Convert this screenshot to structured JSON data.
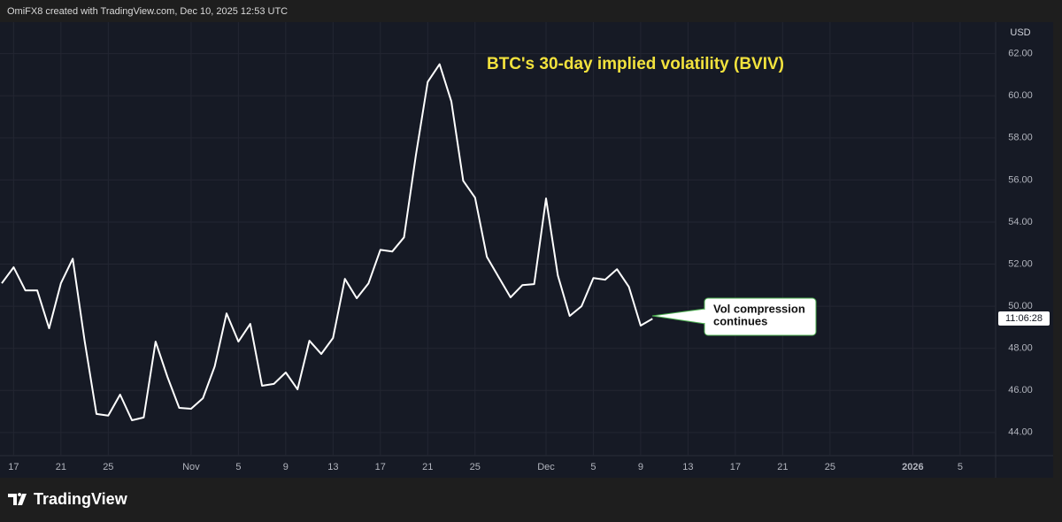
{
  "header": "OmiFX8 created with TradingView.com, Dec 10, 2025 12:53 UTC",
  "footer": "TradingView",
  "chart_data": {
    "type": "line",
    "title": "BTC's 30-day implied volatility (BVIV)",
    "currency": "USD",
    "countdown": "11:06:28",
    "annotation": [
      "Vol compression",
      "continues"
    ],
    "x": [
      "2025-10-16",
      "2025-10-17",
      "2025-10-18",
      "2025-10-19",
      "2025-10-20",
      "2025-10-21",
      "2025-10-22",
      "2025-10-23",
      "2025-10-24",
      "2025-10-25",
      "2025-10-26",
      "2025-10-27",
      "2025-10-28",
      "2025-10-29",
      "2025-10-30",
      "2025-10-31",
      "2025-11-01",
      "2025-11-02",
      "2025-11-03",
      "2025-11-04",
      "2025-11-05",
      "2025-11-06",
      "2025-11-07",
      "2025-11-08",
      "2025-11-09",
      "2025-11-10",
      "2025-11-11",
      "2025-11-12",
      "2025-11-13",
      "2025-11-14",
      "2025-11-15",
      "2025-11-16",
      "2025-11-17",
      "2025-11-18",
      "2025-11-19",
      "2025-11-20",
      "2025-11-21",
      "2025-11-22",
      "2025-11-23",
      "2025-11-24",
      "2025-11-25",
      "2025-11-26",
      "2025-11-27",
      "2025-11-28",
      "2025-11-29",
      "2025-11-30",
      "2025-12-01",
      "2025-12-02",
      "2025-12-03",
      "2025-12-04",
      "2025-12-05",
      "2025-12-06",
      "2025-12-07",
      "2025-12-08",
      "2025-12-09",
      "2025-12-10"
    ],
    "series": [
      {
        "color": "#ffffff",
        "values": [
          51.09,
          51.85,
          50.75,
          50.75,
          48.95,
          51.09,
          52.26,
          48.36,
          44.88,
          44.8,
          45.8,
          44.58,
          44.71,
          48.32,
          46.64,
          45.17,
          45.13,
          45.63,
          47.14,
          49.66,
          48.32,
          49.16,
          46.22,
          46.31,
          46.85,
          46.05,
          48.36,
          47.73,
          48.49,
          51.3,
          50.38,
          51.09,
          52.68,
          52.6,
          53.27,
          57.17,
          60.66,
          61.5,
          59.73,
          55.96,
          55.16,
          52.35,
          51.38,
          50.42,
          51.0,
          51.05,
          55.12,
          51.47,
          49.54,
          50.0,
          51.34,
          51.26,
          51.76,
          50.92,
          49.08,
          49.41
        ]
      }
    ],
    "xlim": [
      "2025-10-16",
      "2026-01-08"
    ],
    "xticks": [
      {
        "value": "2025-10-17",
        "label": "17"
      },
      {
        "value": "2025-10-21",
        "label": "21"
      },
      {
        "value": "2025-10-25",
        "label": "25"
      },
      {
        "value": "2025-11-01",
        "label": "Nov"
      },
      {
        "value": "2025-11-05",
        "label": "5"
      },
      {
        "value": "2025-11-09",
        "label": "9"
      },
      {
        "value": "2025-11-13",
        "label": "13"
      },
      {
        "value": "2025-11-17",
        "label": "17"
      },
      {
        "value": "2025-11-21",
        "label": "21"
      },
      {
        "value": "2025-11-25",
        "label": "25"
      },
      {
        "value": "2025-12-01",
        "label": "Dec"
      },
      {
        "value": "2025-12-05",
        "label": "5"
      },
      {
        "value": "2025-12-09",
        "label": "9"
      },
      {
        "value": "2025-12-13",
        "label": "13"
      },
      {
        "value": "2025-12-17",
        "label": "17"
      },
      {
        "value": "2025-12-21",
        "label": "21"
      },
      {
        "value": "2025-12-25",
        "label": "25"
      },
      {
        "value": "2026-01-01",
        "label": "2026"
      },
      {
        "value": "2026-01-05",
        "label": "5"
      }
    ],
    "ylim": [
      42.9,
      63.5
    ],
    "yticks": [
      {
        "value": 44,
        "label": "44.00"
      },
      {
        "value": 46,
        "label": "46.00"
      },
      {
        "value": 48,
        "label": "48.00"
      },
      {
        "value": 50,
        "label": "50.00"
      },
      {
        "value": 52,
        "label": "52.00"
      },
      {
        "value": 54,
        "label": "54.00"
      },
      {
        "value": 56,
        "label": "56.00"
      },
      {
        "value": 58,
        "label": "58.00"
      },
      {
        "value": 60,
        "label": "60.00"
      },
      {
        "value": 62,
        "label": "62.00"
      }
    ],
    "grid": true
  }
}
